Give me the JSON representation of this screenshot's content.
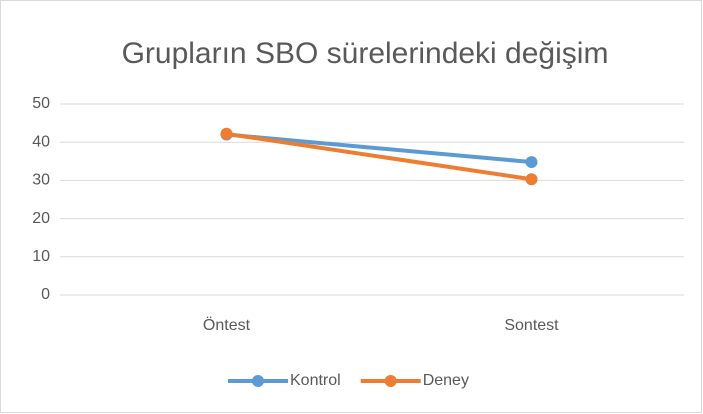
{
  "chart_data": {
    "type": "line",
    "title": "Grupların SBO sürelerindeki değişim",
    "categories": [
      "Öntest",
      "Sontest"
    ],
    "series": [
      {
        "name": "Kontrol",
        "color": "#5b9bd5",
        "values": [
          42,
          34.8
        ]
      },
      {
        "name": "Deney",
        "color": "#ed7d31",
        "values": [
          42.2,
          30.3
        ]
      }
    ],
    "ylim": [
      0,
      50
    ],
    "yticks": [
      0,
      10,
      20,
      30,
      40,
      50
    ],
    "grid": true,
    "legend": "bottom"
  }
}
